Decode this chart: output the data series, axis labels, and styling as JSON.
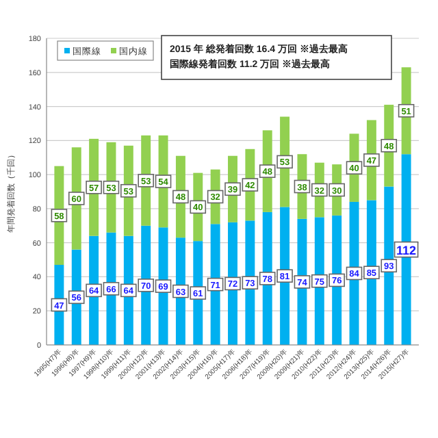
{
  "chart_data": {
    "type": "bar",
    "stacked": true,
    "ylabel": "年間発着回数（千回）",
    "categories": [
      "1995(H7)年",
      "1996(H8)年",
      "1997(H9)年",
      "1998(H10)年",
      "1999(H11)年",
      "2000(H12)年",
      "2001(H13)年",
      "2002(H14)年",
      "2003(H15)年",
      "2004(H16)年",
      "2005(H17)年",
      "2006(H18)年",
      "2007(H19)年",
      "2008(H20)年",
      "2009(H21)年",
      "2010(H22)年",
      "2011(H23)年",
      "2012(H24)年",
      "2013(H25)年",
      "2014(H26)年",
      "2015(H27)年"
    ],
    "series": [
      {
        "name": "国際線",
        "color": "#00b0f0",
        "values": [
          47,
          56,
          64,
          66,
          64,
          70,
          69,
          63,
          61,
          71,
          72,
          73,
          78,
          81,
          74,
          75,
          76,
          84,
          85,
          93,
          112
        ]
      },
      {
        "name": "国内線",
        "color": "#92d050",
        "values": [
          58,
          60,
          57,
          53,
          53,
          53,
          54,
          48,
          40,
          32,
          39,
          42,
          48,
          53,
          38,
          32,
          30,
          40,
          47,
          48,
          51
        ]
      }
    ],
    "ylim": [
      0,
      180
    ],
    "yticks": [
      0,
      20,
      40,
      60,
      80,
      100,
      120,
      140,
      160,
      180
    ],
    "grid": "y",
    "legend": "top left",
    "data_labels": true,
    "annotations": [
      "2015 年 総発着回数 16.4 万回 ※過去最高",
      "国際線発着回数 11.2 万回 ※過去最高"
    ]
  }
}
